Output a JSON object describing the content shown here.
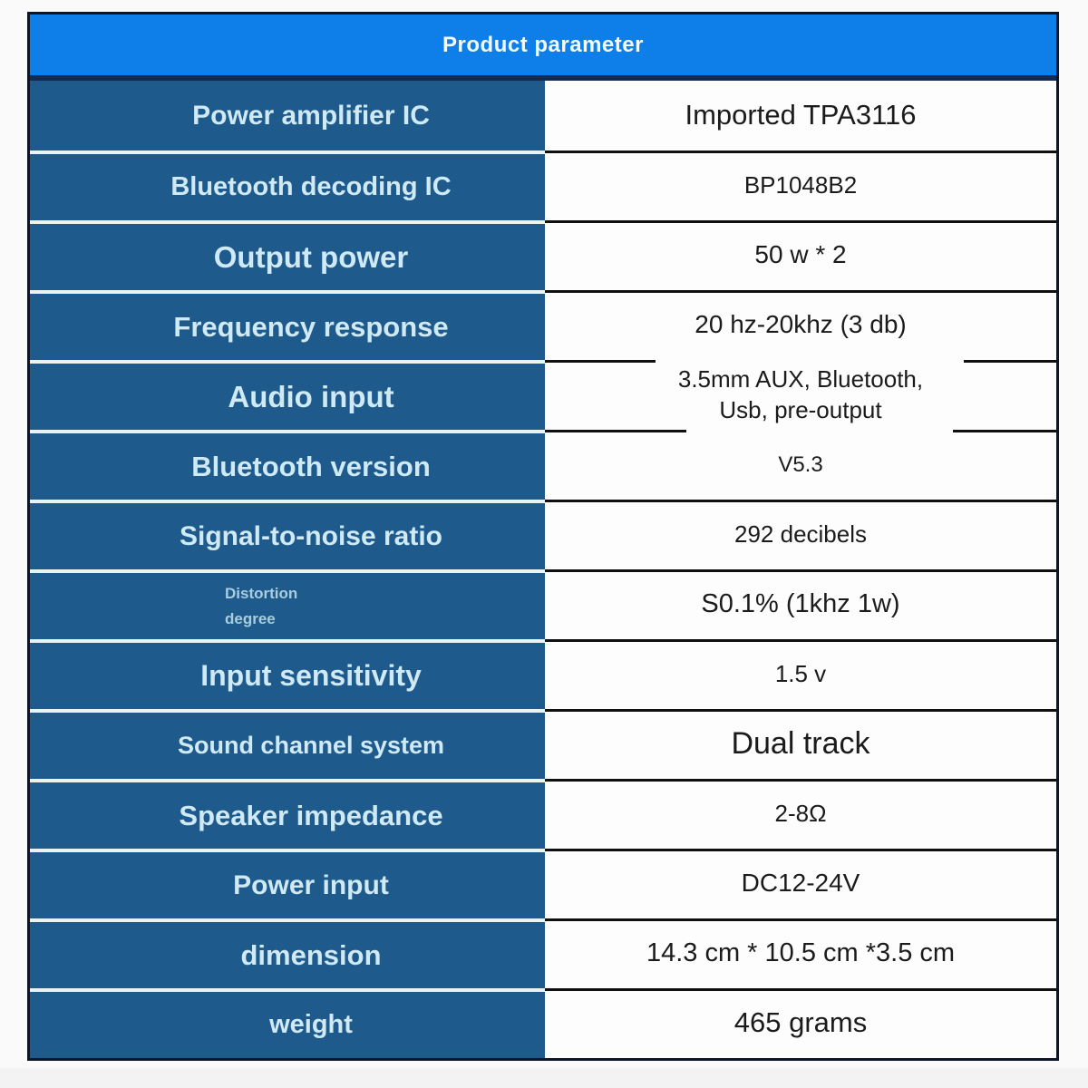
{
  "header": {
    "title": "Product parameter"
  },
  "table": {
    "rows": [
      {
        "label": "Power amplifier IC",
        "value": "Imported TPA3116"
      },
      {
        "label": "Bluetooth decoding IC",
        "value": "BP1048B2"
      },
      {
        "label": "Output power",
        "value": "50 w * 2"
      },
      {
        "label": "Frequency response",
        "value": "20 hz-20khz (3 db)"
      },
      {
        "label": "Audio input",
        "value": "3.5mm AUX, Bluetooth,\nUsb, pre-output"
      },
      {
        "label": "Bluetooth version",
        "value": "V5.3"
      },
      {
        "label": "Signal-to-noise ratio",
        "value": "292 decibels"
      },
      {
        "label": "Distortion\ndegree",
        "value": "S0.1% (1khz 1w)"
      },
      {
        "label": "Input sensitivity",
        "value": "1.5 v"
      },
      {
        "label": "Sound channel system",
        "value": "Dual track"
      },
      {
        "label": "Speaker impedance",
        "value": "2-8Ω"
      },
      {
        "label": "Power input",
        "value": "DC12-24V"
      },
      {
        "label": "dimension",
        "value": "14.3 cm * 10.5 cm *3.5 cm"
      },
      {
        "label": "weight",
        "value": "465 grams"
      }
    ]
  },
  "colors": {
    "header_bg": "#0e7fe8",
    "header_border": "#142a4e",
    "left_cell_bg": "#1e5a8c",
    "label_text": "#cfe9f5",
    "label_text_dim": "#a8cede",
    "value_text": "#1b1b1b",
    "line_black": "#101010",
    "line_white": "#ecf4f1",
    "frame": "#0d1526",
    "page_bg": "#fafafa",
    "right_cell_bg": "#fdfdfd"
  }
}
